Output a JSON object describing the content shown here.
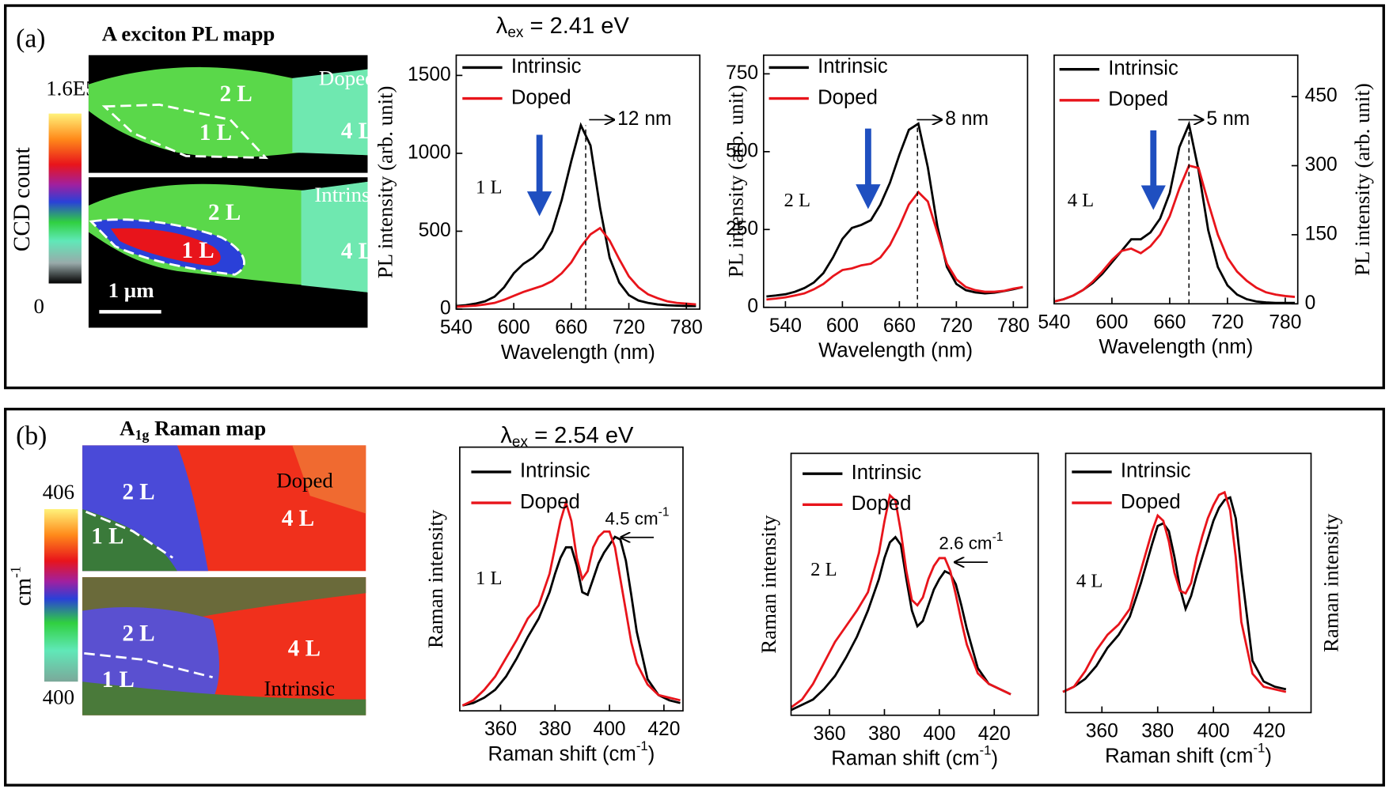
{
  "panel_a": {
    "label": "(a)",
    "map_title": "A  exciton PL mapp",
    "colorbar_max": "1.6E5",
    "colorbar_min": "0",
    "colorbar_label": "CCD count",
    "map_top": {
      "state": "Doped",
      "l2": "2 L",
      "l1": "1 L",
      "l4": "4 L"
    },
    "map_bottom": {
      "state": "Intrinsic",
      "l2": "2 L",
      "l1": "1 L",
      "l4": "4 L"
    },
    "scale_bar": "1 µm",
    "excitation": [
      "λ",
      "ex",
      " = 2.41 eV"
    ]
  },
  "panel_b": {
    "label": "(b)",
    "map_title": [
      "A",
      "1g",
      " Raman map"
    ],
    "colorbar_max": "406",
    "colorbar_min": "400",
    "colorbar_label": [
      "cm",
      "-1"
    ],
    "map_top": {
      "state": "Doped",
      "l2": "2 L",
      "l1": "1 L",
      "l4": "4 L"
    },
    "map_bottom": {
      "state": "Intrinsic",
      "l2": "2 L",
      "l1": "1 L",
      "l4": "4 L"
    },
    "excitation": [
      "λ",
      "ex",
      " = 2.54 eV"
    ]
  },
  "chart_data": [
    {
      "type": "line",
      "xlabel": "Wavelength (nm)",
      "ylabel": "PL intensity (arb. unit)",
      "x": [
        540,
        550,
        560,
        570,
        580,
        590,
        600,
        610,
        620,
        630,
        640,
        650,
        660,
        670,
        680,
        690,
        700,
        710,
        720,
        730,
        740,
        750,
        760,
        770,
        780,
        790
      ],
      "series": [
        {
          "name": "Intrinsic",
          "color": "#000000",
          "values": [
            20,
            25,
            35,
            50,
            80,
            140,
            230,
            290,
            330,
            390,
            500,
            700,
            950,
            1180,
            1050,
            650,
            330,
            170,
            90,
            55,
            40,
            30,
            25,
            22,
            20,
            20
          ]
        },
        {
          "name": "Doped",
          "color": "#e8141b",
          "values": [
            15,
            18,
            22,
            30,
            40,
            60,
            85,
            110,
            130,
            150,
            180,
            230,
            300,
            400,
            480,
            520,
            440,
            320,
            210,
            140,
            95,
            70,
            50,
            40,
            35,
            30
          ]
        }
      ],
      "xlim": [
        540,
        794
      ],
      "ylim": [
        0,
        1630
      ],
      "xticks": [
        540,
        600,
        660,
        720,
        780
      ],
      "yticks": [
        0,
        500,
        1000,
        1500
      ],
      "layer": "1 L",
      "shift": "12 nm",
      "peak_x": 675
    },
    {
      "type": "line",
      "xlabel": "Wavelength (nm)",
      "ylabel": "PL intensity (arb. unit)",
      "x": [
        520,
        530,
        540,
        550,
        560,
        570,
        580,
        590,
        600,
        610,
        620,
        630,
        640,
        650,
        660,
        670,
        680,
        690,
        700,
        710,
        720,
        730,
        740,
        750,
        760,
        770,
        780,
        790
      ],
      "series": [
        {
          "name": "Intrinsic",
          "color": "#000000",
          "values": [
            35,
            38,
            42,
            50,
            62,
            80,
            110,
            160,
            220,
            255,
            265,
            280,
            330,
            400,
            490,
            570,
            590,
            450,
            260,
            130,
            75,
            55,
            48,
            45,
            47,
            52,
            58,
            65
          ]
        },
        {
          "name": "Doped",
          "color": "#e8141b",
          "values": [
            25,
            28,
            32,
            38,
            45,
            58,
            75,
            100,
            120,
            125,
            135,
            140,
            160,
            200,
            260,
            330,
            370,
            340,
            240,
            140,
            90,
            65,
            55,
            50,
            50,
            53,
            60,
            65
          ]
        }
      ],
      "xlim": [
        517,
        795
      ],
      "ylim": [
        0,
        810
      ],
      "xticks": [
        540,
        600,
        660,
        720,
        780
      ],
      "yticks": [
        0,
        250,
        500,
        750
      ],
      "layer": "2 L",
      "shift": "8 nm",
      "peak_x": 679
    },
    {
      "type": "line",
      "xlabel": "Wavelength (nm)",
      "ylabel": "PL intensity (arb. unit)",
      "x": [
        540,
        550,
        560,
        570,
        580,
        590,
        600,
        610,
        620,
        630,
        640,
        650,
        660,
        670,
        680,
        690,
        700,
        710,
        720,
        730,
        740,
        750,
        760,
        770,
        780,
        790
      ],
      "series": [
        {
          "name": "Intrinsic",
          "color": "#000000",
          "axis": "y2",
          "values": [
            5,
            10,
            18,
            30,
            45,
            65,
            90,
            115,
            140,
            140,
            155,
            185,
            240,
            340,
            390,
            290,
            160,
            80,
            40,
            20,
            10,
            5,
            3,
            2,
            2,
            2
          ]
        },
        {
          "name": "Doped",
          "color": "#e8141b",
          "axis": "y2",
          "values": [
            5,
            10,
            18,
            30,
            48,
            70,
            95,
            115,
            120,
            110,
            125,
            150,
            190,
            250,
            300,
            295,
            220,
            150,
            100,
            70,
            50,
            35,
            25,
            20,
            17,
            15
          ]
        }
      ],
      "xlim": [
        540,
        793
      ],
      "y2lim": [
        0,
        540
      ],
      "xticks": [
        540,
        600,
        660,
        720,
        780
      ],
      "y2ticks": [
        0,
        150,
        300,
        450
      ],
      "layer": "4 L",
      "shift": "5 nm",
      "peak_x": 680
    },
    {
      "type": "line",
      "xlabel": "Raman shift (cm",
      "xlabel_sup": "-1",
      "xlabel_end": ")",
      "ylabel": "Raman intensity",
      "x": [
        346,
        350,
        354,
        358,
        362,
        366,
        370,
        374,
        378,
        380,
        382,
        384,
        386,
        388,
        390,
        392,
        394,
        396,
        398,
        400,
        402,
        404,
        406,
        408,
        410,
        414,
        418,
        422,
        426
      ],
      "series": [
        {
          "name": "Intrinsic",
          "color": "#000000",
          "values": [
            0.02,
            0.03,
            0.05,
            0.08,
            0.13,
            0.2,
            0.28,
            0.35,
            0.45,
            0.52,
            0.58,
            0.62,
            0.62,
            0.55,
            0.45,
            0.44,
            0.5,
            0.56,
            0.6,
            0.63,
            0.66,
            0.65,
            0.57,
            0.44,
            0.3,
            0.12,
            0.06,
            0.04,
            0.03
          ]
        },
        {
          "name": "Doped",
          "color": "#e8141b",
          "values": [
            0.02,
            0.04,
            0.08,
            0.13,
            0.2,
            0.27,
            0.35,
            0.4,
            0.52,
            0.62,
            0.72,
            0.79,
            0.72,
            0.58,
            0.5,
            0.53,
            0.62,
            0.66,
            0.68,
            0.68,
            0.62,
            0.5,
            0.38,
            0.26,
            0.18,
            0.1,
            0.06,
            0.05,
            0.04
          ]
        }
      ],
      "xlim": [
        345,
        427
      ],
      "ylim": [
        0,
        1
      ],
      "xticks": [
        360,
        380,
        400,
        420
      ],
      "layer": "1 L",
      "shift": "4.5 cm",
      "shift_sup": "-1"
    },
    {
      "type": "line",
      "xlabel": "Raman shift (cm",
      "xlabel_sup": "-1",
      "xlabel_end": ")",
      "ylabel": "Raman intensity",
      "x": [
        346,
        350,
        354,
        358,
        362,
        366,
        370,
        374,
        378,
        380,
        382,
        384,
        386,
        388,
        390,
        392,
        394,
        396,
        398,
        400,
        402,
        404,
        406,
        408,
        410,
        414,
        418,
        422,
        426
      ],
      "series": [
        {
          "name": "Intrinsic",
          "color": "#000000",
          "values": [
            0.02,
            0.04,
            0.06,
            0.1,
            0.15,
            0.22,
            0.3,
            0.4,
            0.52,
            0.6,
            0.66,
            0.68,
            0.65,
            0.52,
            0.4,
            0.34,
            0.36,
            0.42,
            0.48,
            0.52,
            0.55,
            0.54,
            0.5,
            0.42,
            0.33,
            0.18,
            0.12,
            0.1,
            0.08
          ]
        },
        {
          "name": "Doped",
          "color": "#e8141b",
          "values": [
            0.03,
            0.06,
            0.12,
            0.2,
            0.28,
            0.34,
            0.4,
            0.47,
            0.62,
            0.74,
            0.84,
            0.82,
            0.7,
            0.55,
            0.44,
            0.42,
            0.45,
            0.52,
            0.57,
            0.6,
            0.6,
            0.55,
            0.46,
            0.36,
            0.27,
            0.16,
            0.12,
            0.1,
            0.08
          ]
        }
      ],
      "xlim": [
        346,
        436
      ],
      "ylim": [
        0,
        1
      ],
      "xticks": [
        360,
        380,
        400,
        420
      ],
      "layer": "2 L",
      "shift": "2.6 cm",
      "shift_sup": "-1"
    },
    {
      "type": "line",
      "xlabel": "Raman shift (cm",
      "xlabel_sup": "-1",
      "xlabel_end": ")",
      "ylabel": "Raman intensity",
      "ylabel_position": "right",
      "x": [
        346,
        350,
        354,
        358,
        362,
        366,
        370,
        374,
        378,
        380,
        382,
        384,
        386,
        388,
        390,
        392,
        394,
        396,
        398,
        400,
        402,
        404,
        406,
        408,
        410,
        414,
        418,
        422,
        426
      ],
      "series": [
        {
          "name": "Intrinsic",
          "color": "#000000",
          "values": [
            0.08,
            0.1,
            0.13,
            0.18,
            0.25,
            0.3,
            0.37,
            0.5,
            0.65,
            0.72,
            0.73,
            0.7,
            0.6,
            0.48,
            0.4,
            0.45,
            0.53,
            0.6,
            0.67,
            0.74,
            0.79,
            0.82,
            0.83,
            0.75,
            0.55,
            0.2,
            0.12,
            0.1,
            0.09
          ]
        },
        {
          "name": "Doped",
          "color": "#e8141b",
          "values": [
            0.08,
            0.1,
            0.16,
            0.24,
            0.3,
            0.34,
            0.4,
            0.55,
            0.7,
            0.76,
            0.74,
            0.66,
            0.54,
            0.47,
            0.46,
            0.5,
            0.6,
            0.68,
            0.75,
            0.8,
            0.84,
            0.85,
            0.78,
            0.6,
            0.35,
            0.15,
            0.1,
            0.09,
            0.08
          ]
        }
      ],
      "xlim": [
        347,
        435
      ],
      "ylim": [
        0,
        1
      ],
      "xticks": [
        360,
        380,
        400,
        420
      ],
      "layer": "4 L"
    }
  ]
}
